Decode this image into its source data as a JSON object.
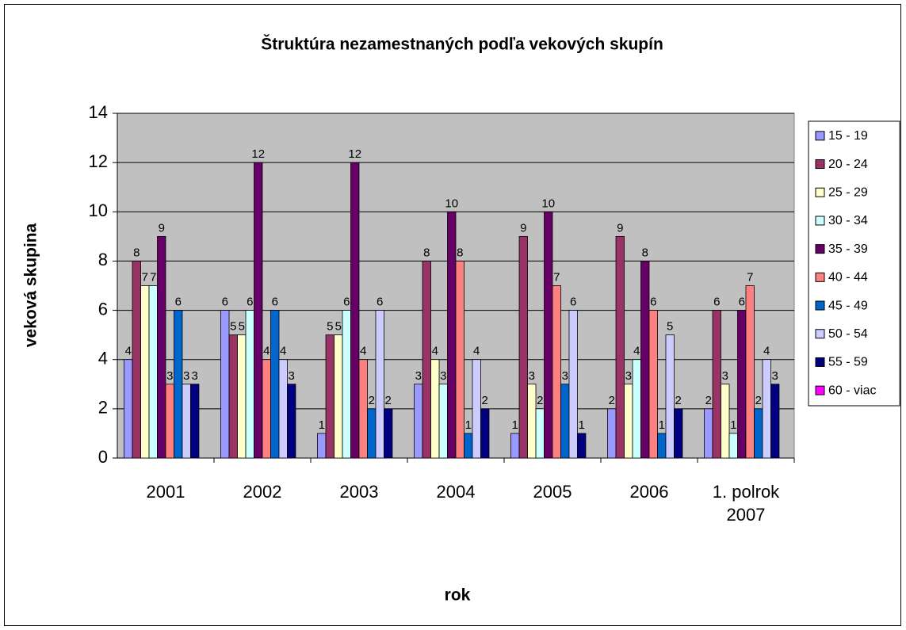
{
  "chart_data": {
    "type": "bar",
    "title": "Štruktúra nezamestnaných podľa vekových skupín",
    "x_label": "rok",
    "y_label": "veková skupina",
    "categories": [
      "2001",
      "2002",
      "2003",
      "2004",
      "2005",
      "2006",
      "1. polrok 2007"
    ],
    "series": [
      {
        "name": "15 - 19",
        "color": "#9999FF",
        "values": [
          4,
          6,
          1,
          3,
          1,
          2,
          2
        ]
      },
      {
        "name": "20 - 24",
        "color": "#993366",
        "values": [
          8,
          5,
          5,
          8,
          9,
          9,
          6
        ]
      },
      {
        "name": "25 - 29",
        "color": "#FFFFCC",
        "values": [
          7,
          5,
          5,
          4,
          3,
          3,
          3
        ]
      },
      {
        "name": "30 - 34",
        "color": "#CCFFFF",
        "values": [
          7,
          6,
          6,
          3,
          2,
          4,
          1
        ]
      },
      {
        "name": "35 - 39",
        "color": "#660066",
        "values": [
          9,
          12,
          12,
          10,
          10,
          8,
          6
        ]
      },
      {
        "name": "40 - 44",
        "color": "#FF8080",
        "values": [
          3,
          4,
          4,
          8,
          7,
          6,
          7
        ]
      },
      {
        "name": "45 - 49",
        "color": "#0066CC",
        "values": [
          6,
          6,
          2,
          1,
          3,
          1,
          2
        ]
      },
      {
        "name": "50 - 54",
        "color": "#CCCCFF",
        "values": [
          3,
          4,
          6,
          4,
          6,
          5,
          4
        ]
      },
      {
        "name": "55 - 59",
        "color": "#000080",
        "values": [
          3,
          3,
          2,
          2,
          1,
          2,
          3
        ]
      },
      {
        "name": "60 - viac",
        "color": "#FF00FF",
        "values": [
          null,
          null,
          null,
          null,
          null,
          null,
          null
        ]
      }
    ],
    "ylim": [
      0,
      14
    ],
    "yticks": [
      0,
      2,
      4,
      6,
      8,
      10,
      12,
      14
    ],
    "grid": true,
    "legend": "right",
    "plot_background": "#C0C0C0"
  }
}
